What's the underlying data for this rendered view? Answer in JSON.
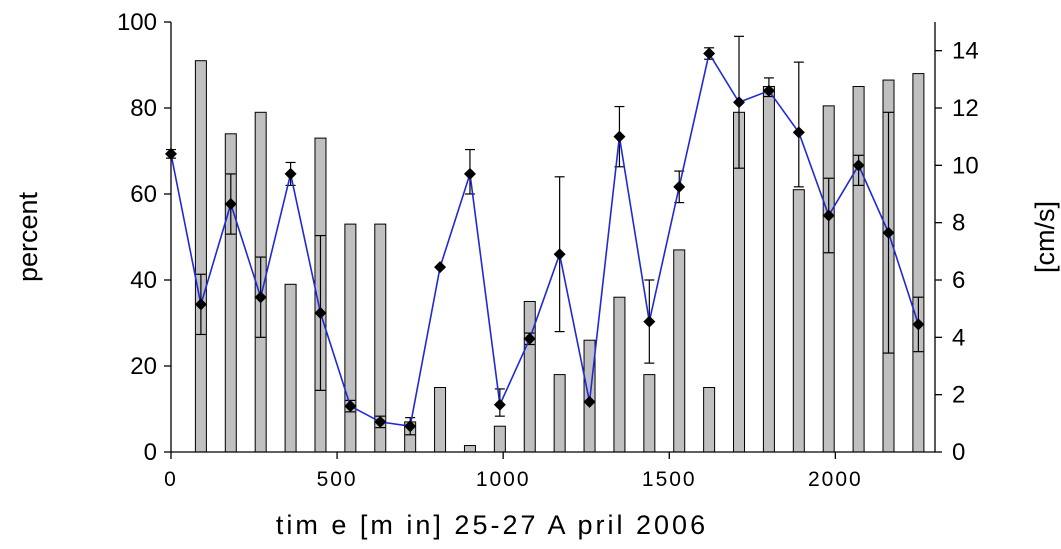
{
  "chart_data": {
    "type": "bar",
    "title": "",
    "xlabel": "tim e  [m in] 25-27 A pril 2006",
    "ylabel": "percent",
    "y2label": "[cm/s]",
    "xlim": [
      0,
      2300
    ],
    "ylim": [
      0,
      100
    ],
    "y2lim": [
      0,
      15
    ],
    "x_ticks": [
      0,
      500,
      1000,
      1500,
      2000
    ],
    "y_ticks": [
      0,
      20,
      40,
      60,
      80,
      100
    ],
    "y2_ticks": [
      0,
      2,
      4,
      6,
      8,
      10,
      12,
      14
    ],
    "grid": false,
    "colors": {
      "bars": "#c0c0c0",
      "bar_edge": "#000000",
      "line": "#1f2ad6",
      "marker": "#000000"
    },
    "series": [
      {
        "type": "bar",
        "axis": "left",
        "x": [
          90,
          180,
          270,
          360,
          450,
          540,
          630,
          720,
          810,
          900,
          990,
          1080,
          1170,
          1260,
          1350,
          1440,
          1530,
          1620,
          1710,
          1800,
          1890,
          1980,
          2070,
          2160,
          2250
        ],
        "values": [
          91,
          74,
          79,
          39,
          73,
          53,
          53,
          7,
          15,
          1.5,
          6,
          35,
          18,
          26,
          36,
          18,
          47,
          15,
          79,
          85,
          61,
          80.5,
          85,
          86.5,
          88
        ]
      },
      {
        "type": "line",
        "axis": "right",
        "x": [
          0,
          90,
          180,
          270,
          360,
          450,
          540,
          630,
          720,
          810,
          900,
          990,
          1080,
          1170,
          1260,
          1350,
          1440,
          1530,
          1620,
          1710,
          1800,
          1890,
          1980,
          2070,
          2160,
          2250
        ],
        "values": [
          10.4,
          5.15,
          8.65,
          5.4,
          9.7,
          4.85,
          1.6,
          1.05,
          0.9,
          6.45,
          9.7,
          1.65,
          3.95,
          6.9,
          1.75,
          11.0,
          4.55,
          9.25,
          13.9,
          12.2,
          12.6,
          11.15,
          8.25,
          10.0,
          7.65,
          4.45
        ],
        "err_low": [
          0.15,
          1.05,
          1.05,
          1.4,
          0.4,
          2.7,
          0.2,
          0.2,
          0.3,
          0,
          0.7,
          0.4,
          0.2,
          2.7,
          0,
          1.05,
          1.45,
          0.55,
          0.2,
          2.3,
          0.2,
          1.9,
          1.3,
          0.7,
          4.2,
          0.95
        ],
        "err_high": [
          0.15,
          1.05,
          1.05,
          1.4,
          0.4,
          2.7,
          0.2,
          0.2,
          0.3,
          0,
          0.85,
          0.55,
          0.2,
          2.7,
          0,
          1.05,
          1.45,
          0.55,
          0.2,
          2.3,
          0.45,
          2.45,
          1.3,
          0.35,
          4.2,
          0.95
        ]
      }
    ]
  }
}
